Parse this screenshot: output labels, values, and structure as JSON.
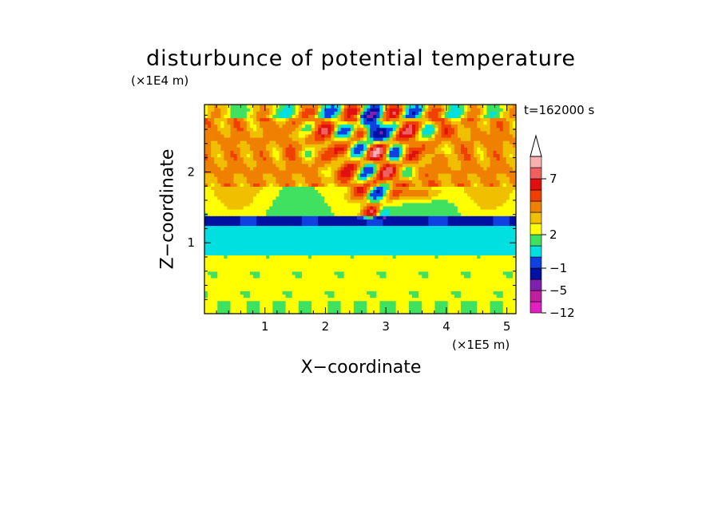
{
  "chart_data": {
    "type": "heatmap",
    "title": "disturbunce of potential temperature",
    "xlabel": "X−coordinate",
    "ylabel": "Z−coordinate",
    "x_unit": "(×1E5 m)",
    "y_unit": "(×1E4 m)",
    "time_label": "t=162000 s",
    "xlim": [
      0,
      5.15
    ],
    "ylim": [
      0,
      2.95
    ],
    "x_ticks": [
      1,
      2,
      3,
      4,
      5
    ],
    "y_ticks": [
      1,
      2
    ],
    "colorbar": {
      "tick_labels": [
        "7",
        "2",
        "−1",
        "−5",
        "−12"
      ],
      "colors": [
        "#e020c0",
        "#c020a0",
        "#8020b0",
        "#0010a0",
        "#1040e0",
        "#00e0e0",
        "#40e060",
        "#ffff00",
        "#f0c000",
        "#f08000",
        "#f04000",
        "#e01010",
        "#f06060",
        "#f8b0b0"
      ]
    },
    "bands": [
      {
        "z_range": [
          0,
          0.85
        ],
        "dominant": "yellow/green",
        "value_approx": 1
      },
      {
        "z_range": [
          0.85,
          1.05
        ],
        "dominant": "cyan",
        "value_approx": -1
      },
      {
        "z_range": [
          1.05,
          1.25
        ],
        "dominant": "cyan",
        "value_approx": -1
      },
      {
        "z_range": [
          1.2,
          1.35
        ],
        "dominant": "blue",
        "value_approx": -4
      },
      {
        "z_range": [
          1.35,
          1.8
        ],
        "dominant": "green/yellow",
        "value_approx": 1
      },
      {
        "z_range": [
          1.8,
          2.95
        ],
        "dominant": "orange/yellow",
        "value_approx": 3
      }
    ],
    "features": [
      {
        "x": 2.75,
        "z": 2.6,
        "value_approx": -6,
        "desc": "strong negative cell"
      },
      {
        "x": 3.5,
        "z": 1.7,
        "value_approx": 4,
        "desc": "warm lobe"
      },
      {
        "x": 2.5,
        "z": 2.2,
        "value_approx": 5,
        "desc": "wave packet"
      }
    ]
  }
}
